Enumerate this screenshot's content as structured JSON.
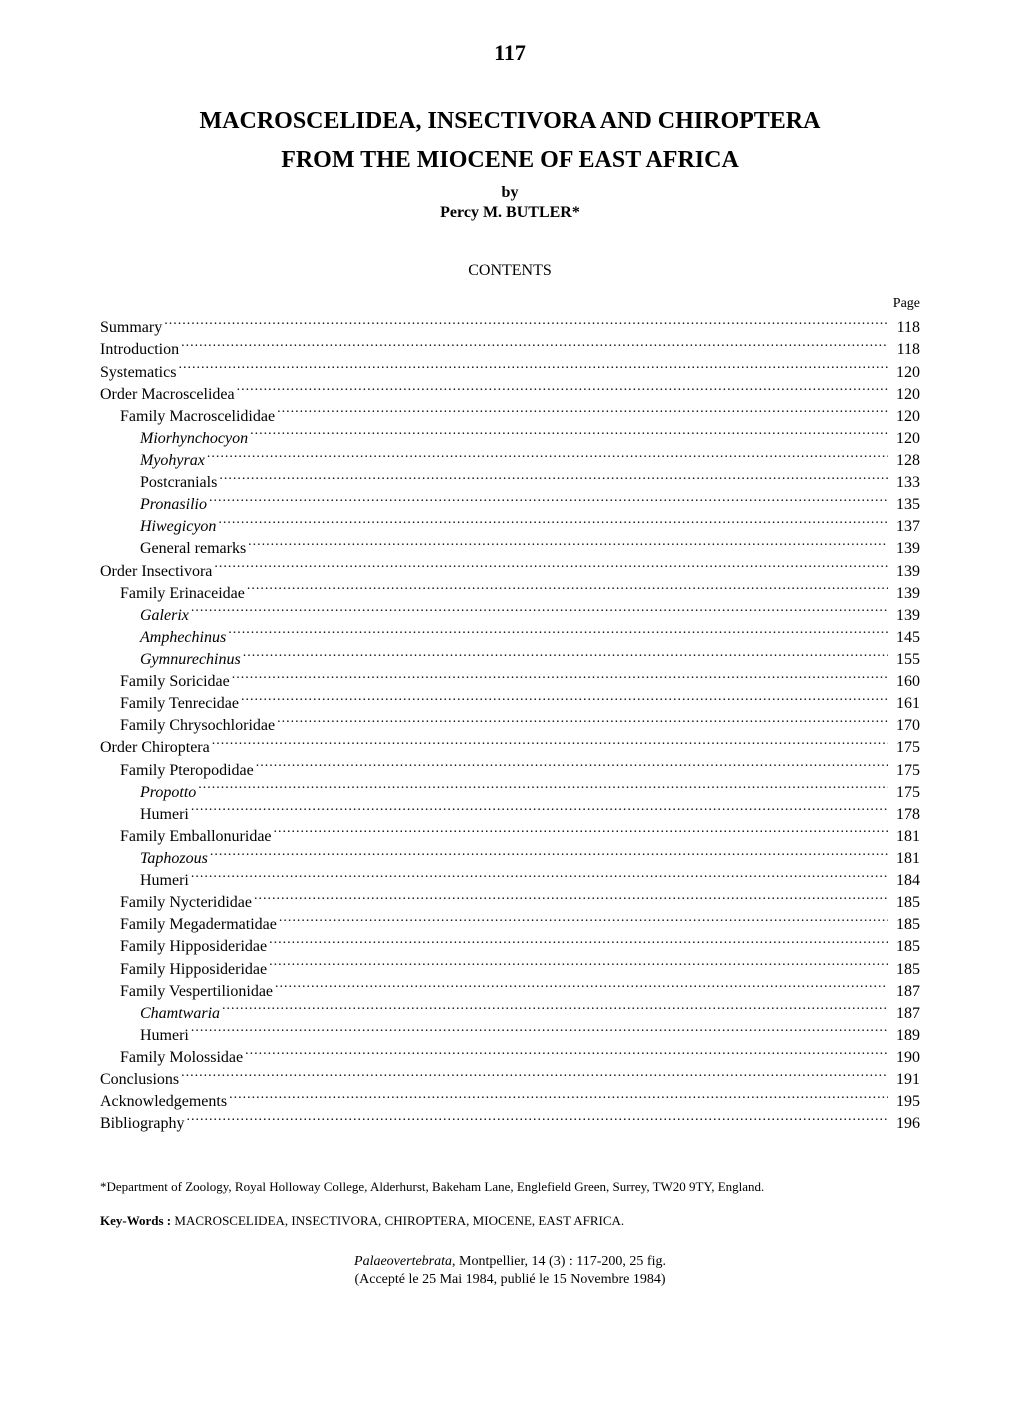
{
  "page_number": "117",
  "title_line1": "MACROSCELIDEA, INSECTIVORA AND CHIROPTERA",
  "title_line2": "FROM THE MIOCENE OF EAST AFRICA",
  "by": "by",
  "author": "Percy M. BUTLER*",
  "contents_heading": "CONTENTS",
  "page_label": "Page",
  "toc": [
    {
      "label": "Summary",
      "page": "118",
      "indent": 0,
      "italic": false
    },
    {
      "label": "Introduction",
      "page": "118",
      "indent": 0,
      "italic": false
    },
    {
      "label": "Systematics",
      "page": "120",
      "indent": 0,
      "italic": false
    },
    {
      "label": "Order Macroscelidea",
      "page": "120",
      "indent": 0,
      "italic": false
    },
    {
      "label": "Family Macroscelididae",
      "page": "120",
      "indent": 1,
      "italic": false
    },
    {
      "label": "Miorhynchocyon",
      "page": "120",
      "indent": 2,
      "italic": true
    },
    {
      "label": "Myohyrax",
      "page": "128",
      "indent": 2,
      "italic": true
    },
    {
      "label": "Postcranials",
      "page": "133",
      "indent": 2,
      "italic": false
    },
    {
      "label": "Pronasilio",
      "page": "135",
      "indent": 2,
      "italic": true
    },
    {
      "label": "Hiwegicyon",
      "page": "137",
      "indent": 2,
      "italic": true
    },
    {
      "label": "General remarks",
      "page": "139",
      "indent": 2,
      "italic": false
    },
    {
      "label": "Order Insectivora",
      "page": "139",
      "indent": 0,
      "italic": false
    },
    {
      "label": "Family Erinaceidae",
      "page": "139",
      "indent": 1,
      "italic": false
    },
    {
      "label": "Galerix",
      "page": "139",
      "indent": 2,
      "italic": true
    },
    {
      "label": "Amphechinus",
      "page": "145",
      "indent": 2,
      "italic": true
    },
    {
      "label": "Gymnurechinus",
      "page": "155",
      "indent": 2,
      "italic": true
    },
    {
      "label": "Family Soricidae",
      "page": "160",
      "indent": 1,
      "italic": false
    },
    {
      "label": "Family Tenrecidae",
      "page": "161",
      "indent": 1,
      "italic": false
    },
    {
      "label": "Family Chrysochloridae",
      "page": "170",
      "indent": 1,
      "italic": false
    },
    {
      "label": "Order Chiroptera",
      "page": "175",
      "indent": 0,
      "italic": false
    },
    {
      "label": "Family Pteropodidae",
      "page": "175",
      "indent": 1,
      "italic": false
    },
    {
      "label": "Propotto",
      "page": "175",
      "indent": 2,
      "italic": true
    },
    {
      "label": "Humeri",
      "page": "178",
      "indent": 2,
      "italic": false
    },
    {
      "label": "Family Emballonuridae",
      "page": "181",
      "indent": 1,
      "italic": false
    },
    {
      "label": "Taphozous",
      "page": "181",
      "indent": 2,
      "italic": true
    },
    {
      "label": "Humeri",
      "page": "184",
      "indent": 2,
      "italic": false
    },
    {
      "label": "Family Nycterididae",
      "page": "185",
      "indent": 1,
      "italic": false
    },
    {
      "label": "Family Megadermatidae",
      "page": "185",
      "indent": 1,
      "italic": false
    },
    {
      "label": "Family Hipposideridae",
      "page": "185",
      "indent": 1,
      "italic": false
    },
    {
      "label": "Family Hipposideridae",
      "page": "185",
      "indent": 1,
      "italic": false
    },
    {
      "label": "Family Vespertilionidae",
      "page": "187",
      "indent": 1,
      "italic": false
    },
    {
      "label": "Chamtwaria",
      "page": "187",
      "indent": 2,
      "italic": true
    },
    {
      "label": "Humeri",
      "page": "189",
      "indent": 2,
      "italic": false
    },
    {
      "label": "Family Molossidae",
      "page": "190",
      "indent": 1,
      "italic": false
    },
    {
      "label": "Conclusions",
      "page": "191",
      "indent": 0,
      "italic": false
    },
    {
      "label": "Acknowledgements",
      "page": "195",
      "indent": 0,
      "italic": false
    },
    {
      "label": "Bibliography",
      "page": "196",
      "indent": 0,
      "italic": false
    }
  ],
  "footnote": "*Department of Zoology, Royal Holloway College, Alderhurst, Bakeham Lane, Englefield Green, Surrey, TW20 9TY, England.",
  "keywords_label": "Key-Words : ",
  "keywords_value": "MACROSCELIDEA, INSECTIVORA, CHIROPTERA, MIOCENE, EAST AFRICA.",
  "citation_journal": "Palaeovertebrata",
  "citation_rest": ", Montpellier, 14 (3) : 117-200, 25 fig.",
  "citation_date": "(Accepté le 25 Mai 1984, publié le 15 Novembre 1984)"
}
